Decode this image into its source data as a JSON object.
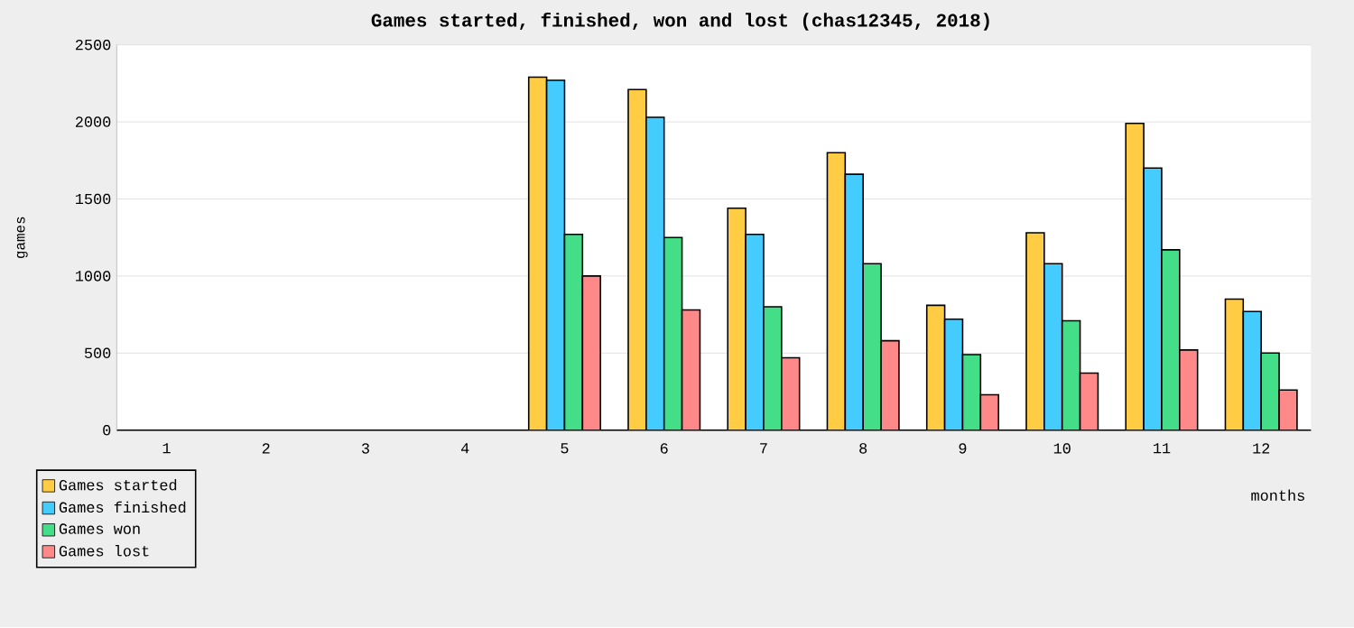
{
  "chart_data": {
    "type": "bar",
    "title": "Games started, finished, won and lost (chas12345, 2018)",
    "xlabel": "months",
    "ylabel": "games",
    "categories": [
      "1",
      "2",
      "3",
      "4",
      "5",
      "6",
      "7",
      "8",
      "9",
      "10",
      "11",
      "12"
    ],
    "series": [
      {
        "name": "Games started",
        "color": "#ffcc44",
        "values": [
          0,
          0,
          0,
          0,
          2290,
          2210,
          1440,
          1800,
          810,
          1280,
          1990,
          850
        ]
      },
      {
        "name": "Games finished",
        "color": "#44ccff",
        "values": [
          0,
          0,
          0,
          0,
          2270,
          2030,
          1270,
          1660,
          720,
          1080,
          1700,
          770
        ]
      },
      {
        "name": "Games won",
        "color": "#44dd88",
        "values": [
          0,
          0,
          0,
          0,
          1270,
          1250,
          800,
          1080,
          490,
          710,
          1170,
          500
        ]
      },
      {
        "name": "Games lost",
        "color": "#ff8888",
        "values": [
          0,
          0,
          0,
          0,
          1000,
          780,
          470,
          580,
          230,
          370,
          520,
          260
        ]
      }
    ],
    "ylim": [
      0,
      2500
    ],
    "yticks": [
      0,
      500,
      1000,
      1500,
      2000,
      2500
    ],
    "grid": "y",
    "legend": "bottom left"
  }
}
